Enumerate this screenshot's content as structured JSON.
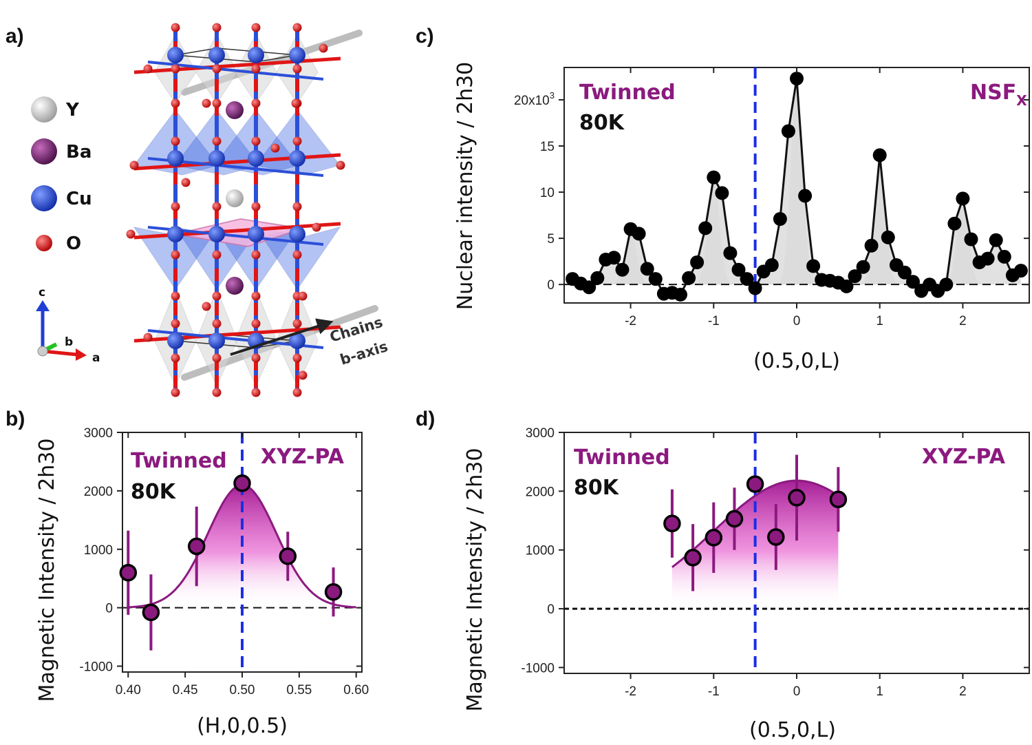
{
  "panels": {
    "a": "a)",
    "b": "b)",
    "c": "c)",
    "d": "d)"
  },
  "structure": {
    "legend": [
      {
        "label": "Y",
        "color": "#c8c8c8"
      },
      {
        "label": "Ba",
        "color": "#6b1f66"
      },
      {
        "label": "Cu",
        "color": "#1f3fd6"
      },
      {
        "label": "O",
        "color": "#e01515"
      }
    ],
    "axes": {
      "c": "c",
      "b": "b",
      "a": "a"
    },
    "chains_line1": "Chains",
    "chains_line2": "b-axis"
  },
  "colors": {
    "purple": "#8b1a7f",
    "dash": "#1a2ee6",
    "fill_gray": "#d9d9d9",
    "marker": "#000000"
  },
  "chart_data": [
    {
      "id": "c",
      "type": "scatter",
      "xlabel": "(0.5,0,L)",
      "ylabel": "Nuclear intensity / 2h30",
      "xlim": [
        -2.8,
        2.8
      ],
      "ylim": [
        -2,
        23.5
      ],
      "x_ticks": [
        -2,
        -1,
        0,
        1,
        2
      ],
      "y_ticks": [
        0,
        5,
        10,
        15,
        20
      ],
      "y_tick_labels": [
        "0",
        "5",
        "10",
        "15",
        "20x10"
      ],
      "y_tick_exponent": "3",
      "annotation_left": "Twinned",
      "annotation_temp": "80K",
      "annotation_right": "NSF",
      "annotation_right_sub": "X",
      "dashed_x": -0.5,
      "points": [
        [
          -2.7,
          0.6
        ],
        [
          -2.6,
          0.1
        ],
        [
          -2.5,
          -0.3
        ],
        [
          -2.4,
          0.7
        ],
        [
          -2.3,
          2.7
        ],
        [
          -2.2,
          2.9
        ],
        [
          -2.1,
          1.6
        ],
        [
          -2.0,
          6.0
        ],
        [
          -1.9,
          5.5
        ],
        [
          -1.8,
          1.7
        ],
        [
          -1.7,
          0.6
        ],
        [
          -1.6,
          -1.0
        ],
        [
          -1.5,
          -0.9
        ],
        [
          -1.4,
          -1.1
        ],
        [
          -1.3,
          0.7
        ],
        [
          -1.2,
          2.4
        ],
        [
          -1.1,
          6.1
        ],
        [
          -1.0,
          11.6
        ],
        [
          -0.9,
          9.9
        ],
        [
          -0.8,
          3.4
        ],
        [
          -0.7,
          1.6
        ],
        [
          -0.6,
          0.6
        ],
        [
          -0.5,
          -0.4
        ],
        [
          -0.4,
          1.4
        ],
        [
          -0.3,
          2.1
        ],
        [
          -0.2,
          7.1
        ],
        [
          -0.1,
          16.6
        ],
        [
          0.0,
          22.3
        ],
        [
          0.1,
          9.6
        ],
        [
          0.2,
          2.0
        ],
        [
          0.3,
          0.5
        ],
        [
          0.4,
          0.4
        ],
        [
          0.5,
          0.2
        ],
        [
          0.6,
          -0.2
        ],
        [
          0.7,
          0.9
        ],
        [
          0.8,
          1.9
        ],
        [
          0.9,
          4.2
        ],
        [
          1.0,
          14.0
        ],
        [
          1.1,
          5.1
        ],
        [
          1.2,
          2.1
        ],
        [
          1.3,
          1.3
        ],
        [
          1.4,
          0.3
        ],
        [
          1.5,
          -0.7
        ],
        [
          1.6,
          0.0
        ],
        [
          1.7,
          -0.7
        ],
        [
          1.8,
          0.0
        ],
        [
          1.9,
          6.6
        ],
        [
          2.0,
          9.3
        ],
        [
          2.1,
          4.9
        ],
        [
          2.2,
          2.4
        ],
        [
          2.3,
          2.8
        ],
        [
          2.4,
          4.8
        ],
        [
          2.5,
          3.0
        ],
        [
          2.6,
          1.0
        ],
        [
          2.7,
          1.5
        ]
      ],
      "fit_peaks": [
        {
          "center": -2.0,
          "amp": 5.8,
          "sigma": 0.07
        },
        {
          "center": -1.0,
          "amp": 11.5,
          "sigma": 0.07
        },
        {
          "center": 0.0,
          "amp": 22.0,
          "sigma": 0.07
        },
        {
          "center": 1.0,
          "amp": 13.5,
          "sigma": 0.07
        },
        {
          "center": 2.0,
          "amp": 9.0,
          "sigma": 0.07
        }
      ]
    },
    {
      "id": "b",
      "type": "scatter",
      "xlabel": "(H,0,0.5)",
      "ylabel": "Magnetic Intensity / 2h30",
      "xlim": [
        0.395,
        0.605
      ],
      "ylim": [
        -1100,
        3000
      ],
      "x_ticks": [
        0.4,
        0.45,
        0.5,
        0.55,
        0.6
      ],
      "x_tick_labels": [
        "0.40",
        "0.45",
        "0.50",
        "0.55",
        "0.60"
      ],
      "y_ticks": [
        -1000,
        0,
        1000,
        2000,
        3000
      ],
      "y_tick_labels": [
        "-1000",
        "0",
        "1000",
        "2000",
        "3000"
      ],
      "annotation_left": "Twinned",
      "annotation_temp": "80K",
      "annotation_right": "XYZ-PA",
      "dashed_x": 0.5,
      "points": [
        {
          "x": 0.4,
          "y": 600,
          "err": 720
        },
        {
          "x": 0.42,
          "y": -80,
          "err": 650
        },
        {
          "x": 0.46,
          "y": 1050,
          "err": 680
        },
        {
          "x": 0.5,
          "y": 2130,
          "err": 0
        },
        {
          "x": 0.54,
          "y": 880,
          "err": 420
        },
        {
          "x": 0.58,
          "y": 270,
          "err": 420
        }
      ],
      "fit": {
        "type": "gaussian",
        "center": 0.5,
        "amp": 2100,
        "sigma": 0.03,
        "offset": 0,
        "xrange": [
          0.4,
          0.6
        ]
      }
    },
    {
      "id": "d",
      "type": "scatter",
      "xlabel": "(0.5,0,L)",
      "ylabel": "Magnetic Intensity / 2h30",
      "xlim": [
        -2.8,
        2.8
      ],
      "ylim": [
        -1100,
        3000
      ],
      "x_ticks": [
        -2,
        -1,
        0,
        1,
        2
      ],
      "y_ticks": [
        -1000,
        0,
        1000,
        2000,
        3000
      ],
      "y_tick_labels": [
        "-1000",
        "0",
        "1000",
        "2000",
        "3000"
      ],
      "annotation_left": "Twinned",
      "annotation_temp": "80K",
      "annotation_right": "XYZ-PA",
      "dashed_x": -0.5,
      "points": [
        {
          "x": -1.5,
          "y": 1450,
          "err": 580
        },
        {
          "x": -1.25,
          "y": 870,
          "err": 570
        },
        {
          "x": -1.0,
          "y": 1210,
          "err": 600
        },
        {
          "x": -0.75,
          "y": 1530,
          "err": 530
        },
        {
          "x": -0.5,
          "y": 2120,
          "err": 0
        },
        {
          "x": -0.25,
          "y": 1220,
          "err": 560
        },
        {
          "x": 0.0,
          "y": 1890,
          "err": 730
        },
        {
          "x": 0.5,
          "y": 1860,
          "err": 550
        }
      ],
      "fit": {
        "type": "gaussian",
        "center": 0.0,
        "amp": 2180,
        "sigma": 1.0,
        "offset": 0,
        "xrange": [
          -1.5,
          0.5
        ]
      }
    }
  ]
}
